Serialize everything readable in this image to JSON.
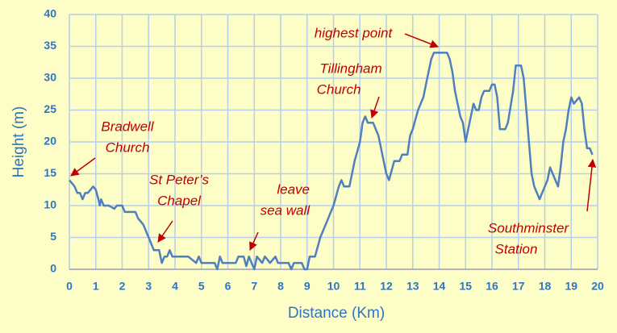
{
  "chart_data": {
    "type": "line",
    "xlabel": "Distance (Km)",
    "ylabel": "Height (m)",
    "x": [
      0,
      0.1,
      0.2,
      0.3,
      0.4,
      0.5,
      0.6,
      0.7,
      0.8,
      0.9,
      1.0,
      1.1,
      1.15,
      1.2,
      1.3,
      1.5,
      1.7,
      1.8,
      2.0,
      2.1,
      2.3,
      2.5,
      2.6,
      2.8,
      3.0,
      3.1,
      3.2,
      3.4,
      3.5,
      3.6,
      3.7,
      3.8,
      3.9,
      4.0,
      4.5,
      4.8,
      4.9,
      5.0,
      5.5,
      5.6,
      5.7,
      5.8,
      6.3,
      6.4,
      6.6,
      6.7,
      6.8,
      6.9,
      7.0,
      7.1,
      7.3,
      7.4,
      7.6,
      7.8,
      7.9,
      8.3,
      8.4,
      8.5,
      8.8,
      8.9,
      9.0,
      9.1,
      9.3,
      9.5,
      9.6,
      9.8,
      9.9,
      10.0,
      10.2,
      10.3,
      10.4,
      10.6,
      10.8,
      11.0,
      11.1,
      11.2,
      11.3,
      11.5,
      11.7,
      11.9,
      12.0,
      12.1,
      12.3,
      12.5,
      12.6,
      12.8,
      12.9,
      13.0,
      13.2,
      13.4,
      13.5,
      13.7,
      13.8,
      14.0,
      14.3,
      14.4,
      14.5,
      14.6,
      14.7,
      14.8,
      14.9,
      15.0,
      15.1,
      15.2,
      15.3,
      15.4,
      15.5,
      15.6,
      15.7,
      15.9,
      16.0,
      16.1,
      16.2,
      16.3,
      16.5,
      16.6,
      16.8,
      16.9,
      17.1,
      17.2,
      17.3,
      17.4,
      17.5,
      17.6,
      17.8,
      17.9,
      18.0,
      18.1,
      18.2,
      18.3,
      18.4,
      18.5,
      18.6,
      18.7,
      18.8,
      18.9,
      19.0,
      19.1,
      19.3,
      19.4,
      19.5,
      19.6,
      19.7,
      19.8
    ],
    "values": [
      14,
      13.5,
      13,
      12,
      12,
      11,
      12,
      12,
      12.5,
      13,
      12.5,
      11,
      10,
      11,
      10,
      10,
      9.5,
      10,
      10,
      9,
      9,
      9,
      8,
      7,
      5,
      4,
      3,
      3,
      1,
      2,
      2,
      3,
      2,
      2,
      2,
      1,
      2,
      1,
      1,
      0,
      2,
      1,
      1,
      2,
      2,
      0.5,
      2,
      1,
      0,
      2,
      1,
      2,
      1,
      2,
      1,
      1,
      0,
      1,
      1,
      0,
      0,
      2,
      2,
      5,
      6,
      8,
      9,
      10,
      13,
      14,
      13,
      13,
      17,
      20,
      23,
      24,
      23,
      23,
      21,
      17,
      15,
      14,
      17,
      17,
      18,
      18,
      21,
      22,
      25,
      27,
      29,
      33,
      34,
      34,
      34,
      33,
      31,
      28,
      26,
      24,
      23,
      20,
      22,
      24,
      26,
      25,
      25,
      27,
      28,
      28,
      29,
      29,
      27,
      22,
      22,
      23,
      28,
      32,
      32,
      30,
      25,
      20,
      15,
      13,
      11,
      12,
      13,
      14,
      16,
      15,
      14,
      13,
      16,
      20,
      22,
      25,
      27,
      26,
      27,
      26,
      22,
      19,
      19,
      18
    ],
    "color": "#4f7fbf",
    "xlim": [
      0,
      20
    ],
    "xticks": [
      0,
      1,
      2,
      3,
      4,
      5,
      6,
      7,
      8,
      9,
      10,
      11,
      12,
      13,
      14,
      15,
      16,
      17,
      18,
      19,
      20
    ],
    "ylim": [
      0,
      40
    ],
    "yticks": [
      0,
      5,
      10,
      15,
      20,
      25,
      30,
      35,
      40
    ],
    "grid": true,
    "annotations": [
      {
        "lines": [
          "Bradwell",
          "Church"
        ]
      },
      {
        "lines": [
          "St Peter’s",
          "Chapel"
        ]
      },
      {
        "lines": [
          "leave",
          "sea wall"
        ]
      },
      {
        "lines": [
          "highest point"
        ]
      },
      {
        "lines": [
          "Tillingham",
          "Church"
        ]
      },
      {
        "lines": [
          "Southminster",
          "Station"
        ]
      }
    ]
  }
}
